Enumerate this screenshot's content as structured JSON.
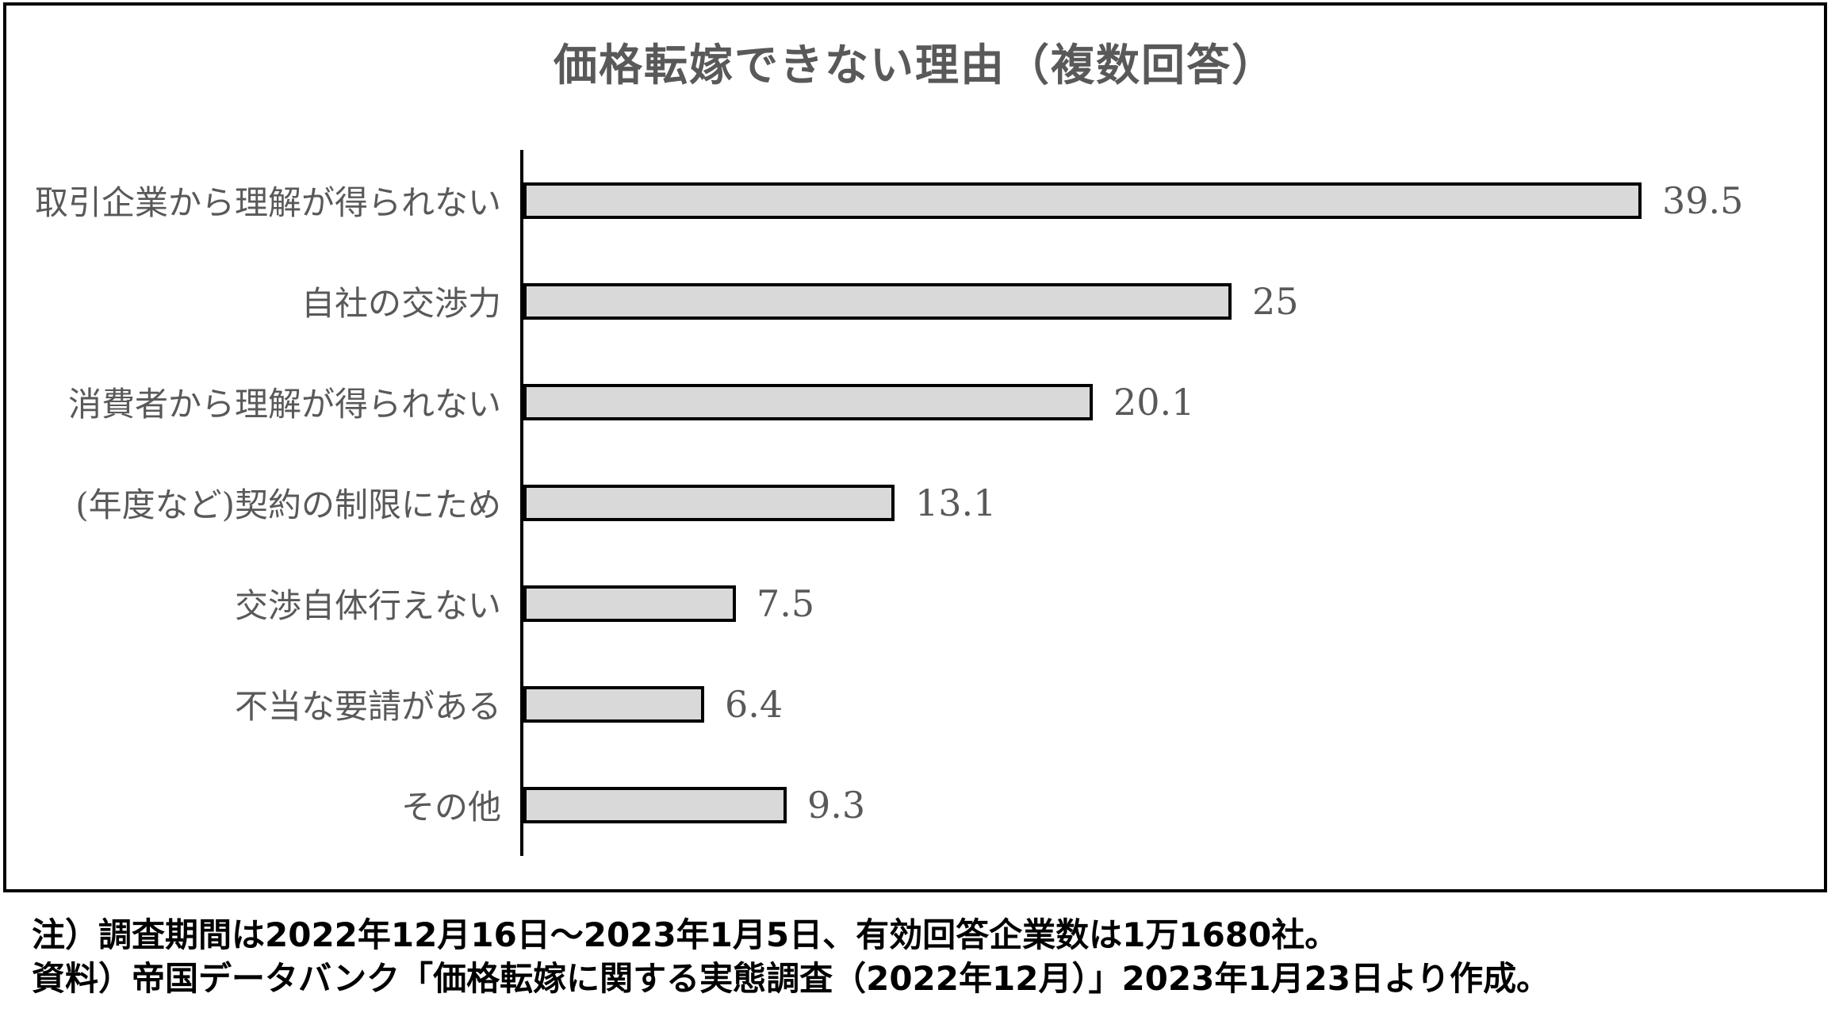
{
  "chart_data": {
    "type": "bar",
    "orientation": "horizontal",
    "title": "価格転嫁できない理由（複数回答）",
    "categories": [
      "取引企業から理解が得られない",
      "自社の交渉力",
      "消費者から理解が得られない",
      "(年度など)契約の制限にため",
      "交渉自体行えない",
      "不当な要請がある",
      "その他"
    ],
    "values": [
      39.5,
      25,
      20.1,
      13.1,
      7.5,
      6.4,
      9.3
    ],
    "value_labels": [
      "39.5",
      "25",
      "20.1",
      "13.1",
      "7.5",
      "6.4",
      "9.3"
    ],
    "xlabel": "",
    "ylabel": "",
    "xlim": [
      0,
      45
    ],
    "grid": false,
    "legend": false,
    "bar_color": "#d9d9d9",
    "bar_border_color": "#000000",
    "label_color": "#595959"
  },
  "notes": {
    "line1": "注）調査期間は2022年12月16日～2023年1月5日、有効回答企業数は1万1680社。",
    "line2": "資料）帝国データバンク「価格転嫁に関する実態調査（2022年12月）」2023年1月23日より作成。"
  }
}
